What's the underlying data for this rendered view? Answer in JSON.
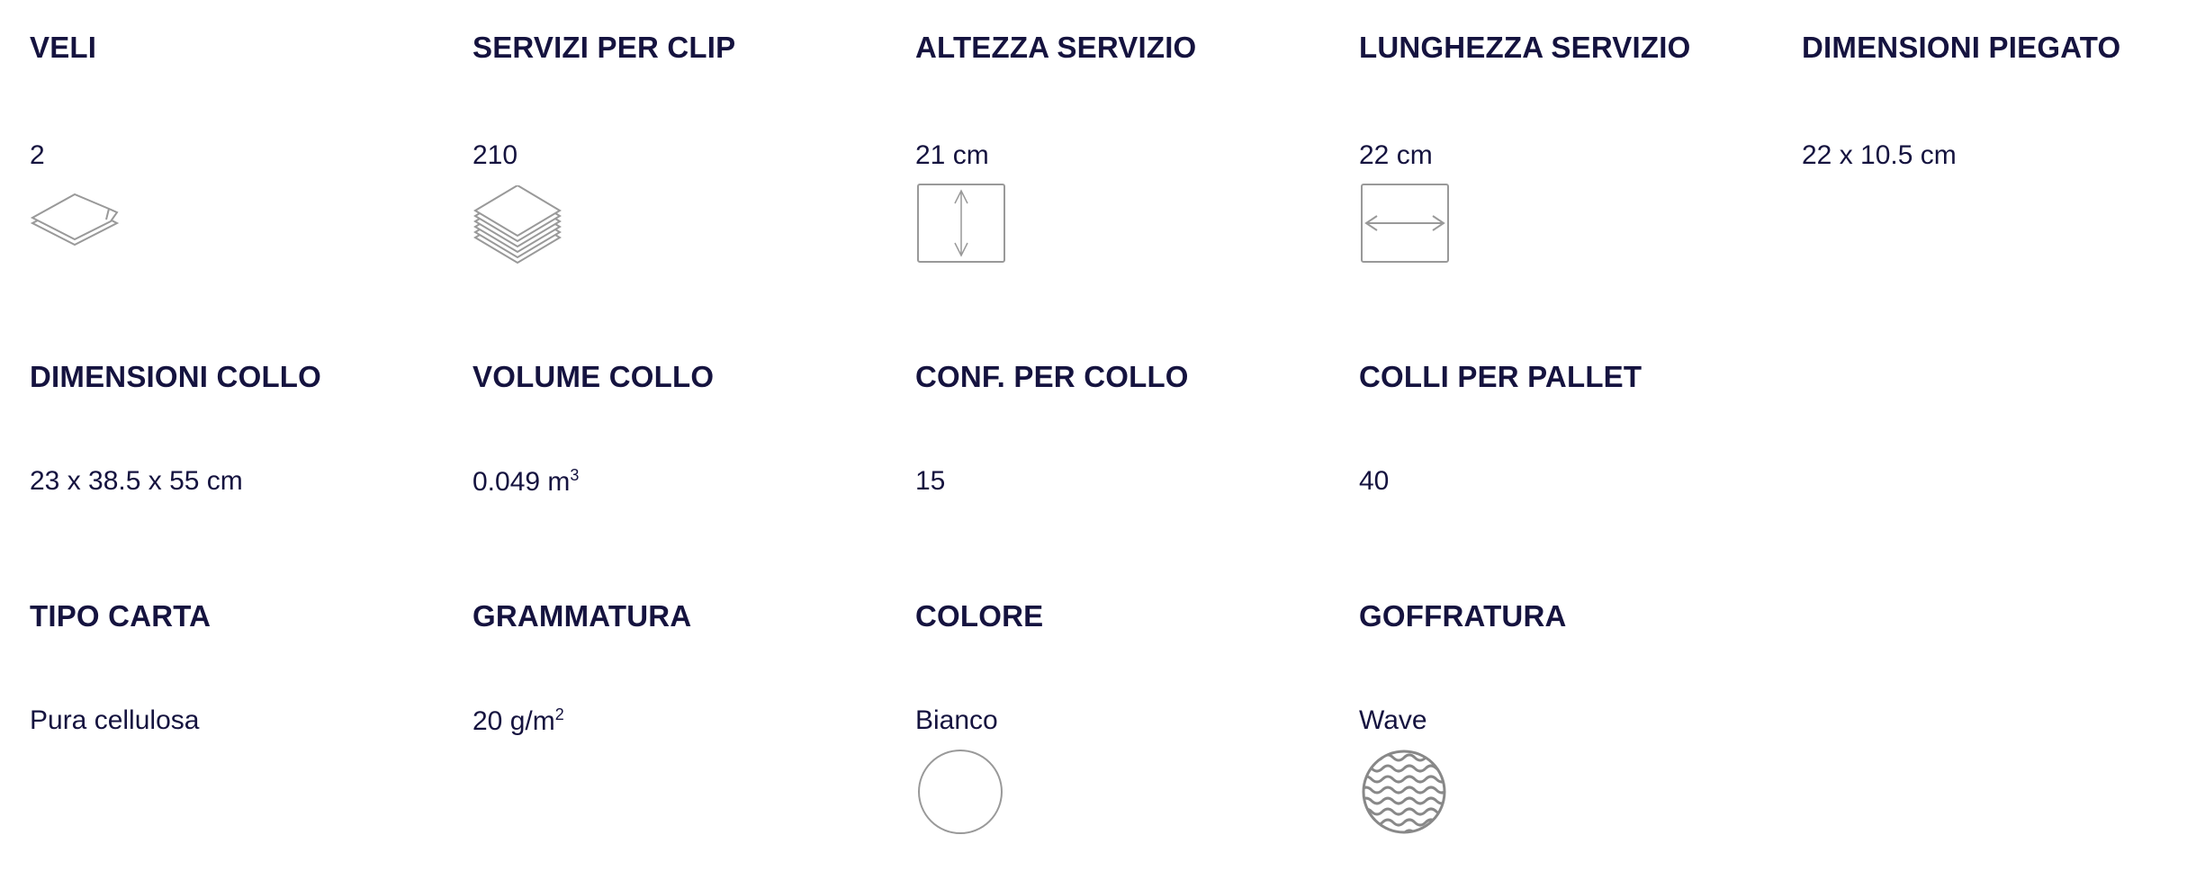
{
  "icon_color": "#999999",
  "text_color": "#15133f",
  "specs": [
    {
      "label": "VELI",
      "value": "2",
      "icon": "two-ply-sheets-icon"
    },
    {
      "label": "SERVIZI PER CLIP",
      "value": "210",
      "icon": "stacked-sheets-icon"
    },
    {
      "label": "ALTEZZA SERVIZIO",
      "value": "21 cm",
      "icon": "vertical-arrow-box-icon"
    },
    {
      "label": "LUNGHEZZA SERVIZIO",
      "value": "22 cm",
      "icon": "horizontal-arrow-box-icon"
    },
    {
      "label": "DIMENSIONI PIEGATO",
      "value": "22 x 10.5 cm"
    },
    {
      "label": "DIMENSIONI COLLO",
      "value": "23 x 38.5 x 55 cm"
    },
    {
      "label": "VOLUME COLLO",
      "value": "0.049 m",
      "value_sup": "3"
    },
    {
      "label": "CONF. PER COLLO",
      "value": "15"
    },
    {
      "label": "COLLI PER PALLET",
      "value": "40"
    },
    {
      "label": "TIPO CARTA",
      "value": "Pura cellulosa"
    },
    {
      "label": "GRAMMATURA",
      "value": "20 g/m",
      "value_sup": "2"
    },
    {
      "label": "COLORE",
      "value": "Bianco",
      "icon": "white-circle-icon"
    },
    {
      "label": "GOFFRATURA",
      "value": "Wave",
      "icon": "wave-embossing-icon"
    }
  ]
}
